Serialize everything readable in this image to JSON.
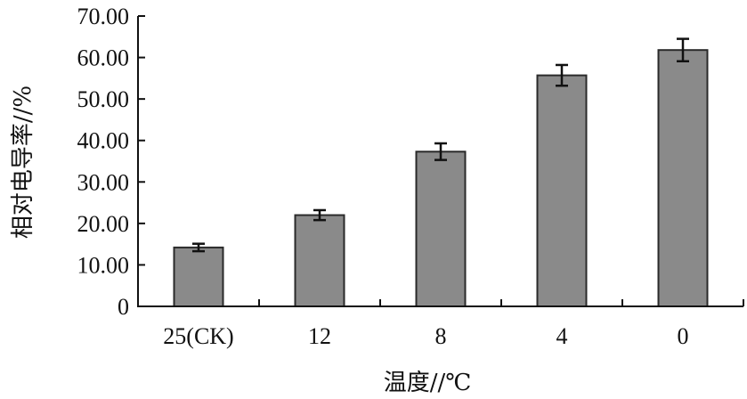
{
  "chart_data": {
    "type": "bar",
    "title": "",
    "xlabel": "温度//℃",
    "ylabel": "相对电导率//%",
    "categories": [
      "25(CK)",
      "12",
      "8",
      "4",
      "0"
    ],
    "series": [
      {
        "values": [
          14.2,
          22.0,
          37.3,
          55.7,
          61.8
        ],
        "errors": [
          0.9,
          1.2,
          2.0,
          2.5,
          2.7
        ]
      }
    ],
    "ylim": [
      0,
      70
    ],
    "yticks": [
      "0",
      "10.00",
      "20.00",
      "30.00",
      "40.00",
      "50.00",
      "60.00",
      "70.00"
    ],
    "ytick_values": [
      0,
      10,
      20,
      30,
      40,
      50,
      60,
      70
    ],
    "grid": false,
    "legend": "none",
    "colors": {
      "bar_fill": "#8a8a8a",
      "bar_stroke": "#2a2a2a",
      "axis": "#111111"
    }
  }
}
